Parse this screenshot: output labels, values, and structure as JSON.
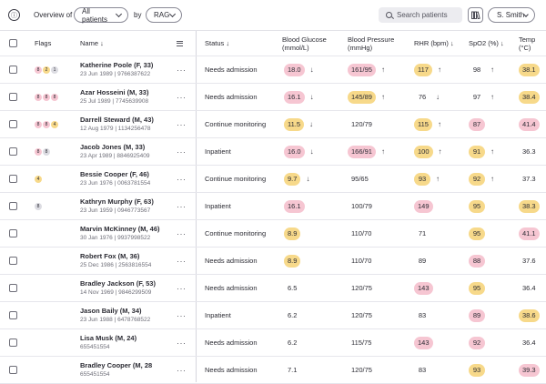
{
  "topbar": {
    "overview_label": "Overview of",
    "patients_select": "All patients",
    "by_label": "by",
    "group_select": "RAG",
    "search_placeholder": "Search patients",
    "user_label": "S. Smith"
  },
  "headers": {
    "flags": "Flags",
    "name": "Name ↓",
    "status": "Status ↓",
    "glucose_l1": "Blood Glucose",
    "glucose_l2": "(mmol/L)",
    "bp_l1": "Blood Pressure",
    "bp_l2": "(mmHg)",
    "rhr": "RHR (bpm) ↓",
    "spo2": "SpO2 (%) ↓",
    "temp": "Temp (°C)"
  },
  "patients": [
    {
      "name": "Katherine Poole (F, 33)",
      "meta": "23 Jun 1989  |  9766387622",
      "flags": [
        {
          "n": "8",
          "c": "red"
        },
        {
          "n": "2",
          "c": "amber"
        },
        {
          "n": "1",
          "c": "grey"
        }
      ],
      "status": "Needs admission",
      "glucose": "18.0",
      "glucose_c": "red",
      "glucose_arrow": "↓",
      "bp": "161/95",
      "bp_c": "red",
      "bp_arrow": "↑",
      "rhr": "117",
      "rhr_c": "amber",
      "rhr_arrow": "↑",
      "spo2": "98",
      "spo2_c": "none",
      "spo2_arrow": "↑",
      "temp": "38.1",
      "temp_c": "amber"
    },
    {
      "name": "Azar Hosseini (M, 33)",
      "meta": "25 Jul 1989  |  7745639908",
      "flags": [
        {
          "n": "8",
          "c": "red"
        },
        {
          "n": "8",
          "c": "red"
        },
        {
          "n": "8",
          "c": "red"
        }
      ],
      "status": "Needs admission",
      "glucose": "16.1",
      "glucose_c": "red",
      "glucose_arrow": "↓",
      "bp": "145/89",
      "bp_c": "amber",
      "bp_arrow": "↑",
      "rhr": "76",
      "rhr_c": "none",
      "rhr_arrow": "↓",
      "spo2": "97",
      "spo2_c": "none",
      "spo2_arrow": "↑",
      "temp": "38.4",
      "temp_c": "amber"
    },
    {
      "name": "Darrell Steward (M, 43)",
      "meta": "12 Aug 1979  |  1134256478",
      "flags": [
        {
          "n": "8",
          "c": "red"
        },
        {
          "n": "8",
          "c": "red"
        },
        {
          "n": "4",
          "c": "amber"
        }
      ],
      "status": "Continue monitoring",
      "glucose": "11.5",
      "glucose_c": "amber",
      "glucose_arrow": "↓",
      "bp": "120/79",
      "bp_c": "none",
      "bp_arrow": "",
      "rhr": "115",
      "rhr_c": "amber",
      "rhr_arrow": "↑",
      "spo2": "87",
      "spo2_c": "red",
      "spo2_arrow": "",
      "temp": "41.4",
      "temp_c": "red"
    },
    {
      "name": "Jacob Jones (M, 33)",
      "meta": "23 Apr 1989  |  8846925409",
      "flags": [
        {
          "n": "8",
          "c": "red"
        },
        {
          "n": "8",
          "c": "grey"
        }
      ],
      "status": "Inpatient",
      "glucose": "16.0",
      "glucose_c": "red",
      "glucose_arrow": "↓",
      "bp": "166/91",
      "bp_c": "red",
      "bp_arrow": "↑",
      "rhr": "100",
      "rhr_c": "amber",
      "rhr_arrow": "↑",
      "spo2": "91",
      "spo2_c": "amber",
      "spo2_arrow": "↑",
      "temp": "36.3",
      "temp_c": "none"
    },
    {
      "name": "Bessie Cooper (F, 46)",
      "meta": "23 Jun 1976  |  0063781554",
      "flags": [
        {
          "n": "4",
          "c": "amber"
        }
      ],
      "status": "Continue monitoring",
      "glucose": "9.7",
      "glucose_c": "amber",
      "glucose_arrow": "↓",
      "bp": "95/65",
      "bp_c": "none",
      "bp_arrow": "",
      "rhr": "93",
      "rhr_c": "amber",
      "rhr_arrow": "↑",
      "spo2": "92",
      "spo2_c": "amber",
      "spo2_arrow": "↑",
      "temp": "37.3",
      "temp_c": "none"
    },
    {
      "name": "Kathryn Murphy (F, 63)",
      "meta": "23 Jun 1959  |  0946773567",
      "flags": [
        {
          "n": "8",
          "c": "grey"
        }
      ],
      "status": "Inpatient",
      "glucose": "16.1",
      "glucose_c": "red",
      "glucose_arrow": "",
      "bp": "100/79",
      "bp_c": "none",
      "bp_arrow": "",
      "rhr": "149",
      "rhr_c": "red",
      "rhr_arrow": "",
      "spo2": "95",
      "spo2_c": "amber",
      "spo2_arrow": "",
      "temp": "38.3",
      "temp_c": "amber"
    },
    {
      "name": "Marvin McKinney (M, 46)",
      "meta": "30 Jan 1976  |  9937998522",
      "flags": [],
      "status": "Continue monitoring",
      "glucose": "8.9",
      "glucose_c": "amber",
      "glucose_arrow": "",
      "bp": "110/70",
      "bp_c": "none",
      "bp_arrow": "",
      "rhr": "71",
      "rhr_c": "none",
      "rhr_arrow": "",
      "spo2": "95",
      "spo2_c": "amber",
      "spo2_arrow": "",
      "temp": "41.1",
      "temp_c": "red"
    },
    {
      "name": "Robert Fox (M, 36)",
      "meta": "25 Dec 1986  |  2563816554",
      "flags": [],
      "status": "Needs admission",
      "glucose": "8.9",
      "glucose_c": "amber",
      "glucose_arrow": "",
      "bp": "110/70",
      "bp_c": "none",
      "bp_arrow": "",
      "rhr": "89",
      "rhr_c": "none",
      "rhr_arrow": "",
      "spo2": "88",
      "spo2_c": "red",
      "spo2_arrow": "",
      "temp": "37.6",
      "temp_c": "none"
    },
    {
      "name": "Bradley Jackson (F, 53)",
      "meta": "14 Nov 1969  |  9846299509",
      "flags": [],
      "status": "Needs admission",
      "glucose": "6.5",
      "glucose_c": "none",
      "glucose_arrow": "",
      "bp": "120/75",
      "bp_c": "none",
      "bp_arrow": "",
      "rhr": "143",
      "rhr_c": "red",
      "rhr_arrow": "",
      "spo2": "95",
      "spo2_c": "amber",
      "spo2_arrow": "",
      "temp": "36.4",
      "temp_c": "none"
    },
    {
      "name": "Jason Baily (M, 34)",
      "meta": "23 Jun 1988  |  6478768522",
      "flags": [],
      "status": "Inpatient",
      "glucose": "6.2",
      "glucose_c": "none",
      "glucose_arrow": "",
      "bp": "120/75",
      "bp_c": "none",
      "bp_arrow": "",
      "rhr": "83",
      "rhr_c": "none",
      "rhr_arrow": "",
      "spo2": "89",
      "spo2_c": "red",
      "spo2_arrow": "",
      "temp": "38.6",
      "temp_c": "amber"
    },
    {
      "name": "Lisa Musk (M, 24)",
      "meta": "655451554",
      "flags": [],
      "status": "Needs admission",
      "glucose": "6.2",
      "glucose_c": "none",
      "glucose_arrow": "",
      "bp": "115/75",
      "bp_c": "none",
      "bp_arrow": "",
      "rhr": "143",
      "rhr_c": "red",
      "rhr_arrow": "",
      "spo2": "92",
      "spo2_c": "red",
      "spo2_arrow": "",
      "temp": "36.4",
      "temp_c": "none"
    },
    {
      "name": "Bradley Cooper (M, 28",
      "meta": "655451554",
      "flags": [],
      "status": "Needs admission",
      "glucose": "7.1",
      "glucose_c": "none",
      "glucose_arrow": "",
      "bp": "120/75",
      "bp_c": "none",
      "bp_arrow": "",
      "rhr": "83",
      "rhr_c": "none",
      "rhr_arrow": "",
      "spo2": "93",
      "spo2_c": "amber",
      "spo2_arrow": "",
      "temp": "39.3",
      "temp_c": "red"
    }
  ]
}
